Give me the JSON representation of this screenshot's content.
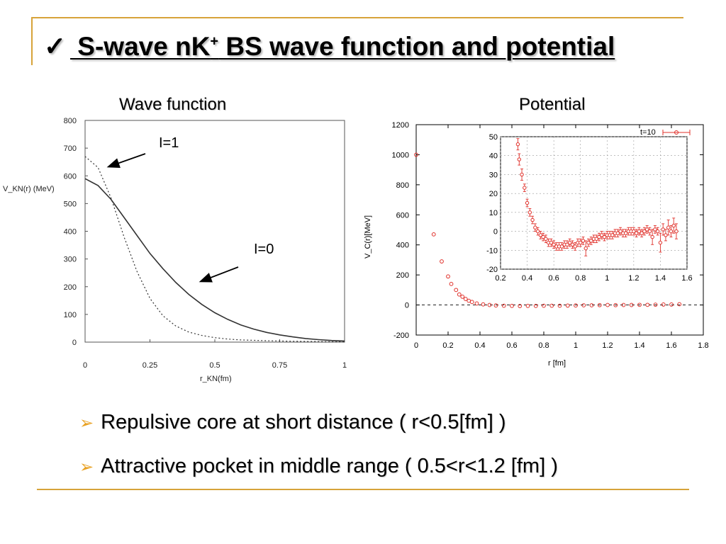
{
  "slide": {
    "check": "✓",
    "title_main": " S-wave nK",
    "title_sup": "+",
    "title_rest": " BS wave function and potential",
    "left_title": "Wave function",
    "right_title": "Potential",
    "bullets": [
      "Repulsive core at short distance ( r<0.5[fm] )",
      "Attractive pocket in middle range ( 0.5<r<1.2 [fm] )"
    ],
    "bullet_glyph": "➢",
    "accent_color": "#d7a33a"
  },
  "chart_data": [
    {
      "type": "line",
      "title": "Wave function",
      "ylabel": "V_KN(r) (MeV)",
      "xlabel": "r_KN(fm)",
      "xlim": [
        0,
        1
      ],
      "ylim": [
        0,
        800
      ],
      "x_ticks": [
        "0",
        "0.25",
        "0.5",
        "0.75",
        "1"
      ],
      "y_ticks": [
        "0",
        "100",
        "200",
        "300",
        "400",
        "500",
        "600",
        "700",
        "800"
      ],
      "annotations": [
        "I=1",
        "I=0"
      ],
      "series": [
        {
          "name": "I=0",
          "style": "solid",
          "x": [
            0,
            0.05,
            0.1,
            0.15,
            0.2,
            0.25,
            0.3,
            0.35,
            0.4,
            0.45,
            0.5,
            0.55,
            0.6,
            0.65,
            0.7,
            0.75,
            0.8,
            0.85,
            0.9,
            0.95,
            1.0
          ],
          "y": [
            590,
            565,
            515,
            450,
            385,
            320,
            265,
            215,
            172,
            136,
            106,
            82,
            62,
            47,
            35,
            26,
            19,
            13,
            9,
            6,
            4
          ]
        },
        {
          "name": "I=1",
          "style": "dotted",
          "x": [
            0,
            0.05,
            0.1,
            0.15,
            0.2,
            0.25,
            0.3,
            0.35,
            0.4,
            0.45,
            0.5,
            0.55,
            0.6,
            0.7,
            0.8,
            0.9,
            1.0
          ],
          "y": [
            670,
            630,
            520,
            380,
            255,
            158,
            95,
            58,
            36,
            24,
            16,
            11,
            8,
            5,
            3,
            2,
            1
          ]
        }
      ]
    },
    {
      "type": "scatter",
      "title": "Potential",
      "ylabel": "V_C(r)[MeV]",
      "xlabel": "r [fm]",
      "xlim": [
        0,
        1.8
      ],
      "ylim": [
        -200,
        1200
      ],
      "x_ticks": [
        "0",
        "0.2",
        "0.4",
        "0.6",
        "0.8",
        "1",
        "1.2",
        "1.4",
        "1.6",
        "1.8"
      ],
      "y_ticks": [
        "-200",
        "0",
        "200",
        "400",
        "600",
        "800",
        "1000",
        "1200"
      ],
      "legend": "t=10",
      "grid": false,
      "series": [
        {
          "name": "t=10",
          "x": [
            0,
            0.11,
            0.16,
            0.2,
            0.22,
            0.25,
            0.27,
            0.29,
            0.31,
            0.33,
            0.35,
            0.38,
            0.42,
            0.46,
            0.5,
            0.55,
            0.6,
            0.65,
            0.7,
            0.75,
            0.8,
            0.85,
            0.9,
            0.95,
            1.0,
            1.05,
            1.1,
            1.15,
            1.2,
            1.25,
            1.3,
            1.35,
            1.4,
            1.45,
            1.5,
            1.55,
            1.6,
            1.65
          ],
          "y": [
            1000,
            470,
            290,
            190,
            140,
            100,
            70,
            55,
            40,
            28,
            20,
            10,
            4,
            0,
            -3,
            -5,
            -6,
            -7,
            -6,
            -6,
            -5,
            -5,
            -5,
            -4,
            -3,
            -2,
            -2,
            -1,
            0,
            -1,
            0,
            0,
            1,
            1,
            2,
            3,
            3,
            5
          ]
        }
      ],
      "inset": {
        "xlim": [
          0.2,
          1.6
        ],
        "ylim": [
          -20,
          50
        ],
        "x_ticks": [
          "0.2",
          "0.4",
          "0.6",
          "0.8",
          "1",
          "1.2",
          "1.4",
          "1.6"
        ],
        "y_ticks": [
          "-20",
          "-10",
          "0",
          "10",
          "20",
          "30",
          "40",
          "50"
        ],
        "grid": true,
        "x": [
          0.33,
          0.34,
          0.36,
          0.38,
          0.4,
          0.42,
          0.44,
          0.46,
          0.48,
          0.5,
          0.52,
          0.54,
          0.56,
          0.58,
          0.6,
          0.62,
          0.64,
          0.66,
          0.68,
          0.7,
          0.72,
          0.74,
          0.76,
          0.78,
          0.8,
          0.82,
          0.84,
          0.86,
          0.88,
          0.9,
          0.92,
          0.94,
          0.96,
          0.98,
          1.0,
          1.02,
          1.04,
          1.06,
          1.08,
          1.1,
          1.12,
          1.14,
          1.16,
          1.18,
          1.2,
          1.22,
          1.24,
          1.26,
          1.28,
          1.3,
          1.32,
          1.34,
          1.36,
          1.38,
          1.4,
          1.42,
          1.44,
          1.46,
          1.48,
          1.5,
          1.52
        ],
        "y": [
          46,
          38,
          30,
          23,
          15,
          10,
          6,
          2,
          0,
          -2,
          -3,
          -4,
          -6,
          -6,
          -7,
          -8,
          -8,
          -8,
          -7,
          -7,
          -6,
          -7,
          -8,
          -6,
          -6,
          -5,
          -9,
          -6,
          -5,
          -4,
          -4,
          -3,
          -2,
          -3,
          -2,
          -2,
          -2,
          -1,
          -1,
          0,
          -1,
          -1,
          0,
          0,
          0,
          -1,
          0,
          -1,
          0,
          1,
          0,
          -3,
          1,
          0,
          -6,
          1,
          -2,
          2,
          0,
          3,
          0
        ],
        "err": [
          3,
          3,
          3,
          2,
          2,
          2,
          2,
          2,
          2,
          2,
          2,
          2,
          2,
          2,
          2,
          2,
          2,
          2,
          2,
          2,
          2,
          2,
          2,
          2,
          2,
          2,
          4,
          2,
          2,
          2,
          2,
          2,
          2,
          2,
          2,
          2,
          2,
          2,
          2,
          2,
          2,
          2,
          2,
          2,
          2,
          2,
          2,
          2,
          2,
          2,
          2,
          4,
          2,
          2,
          5,
          3,
          3,
          4,
          3,
          4,
          4
        ]
      }
    }
  ]
}
